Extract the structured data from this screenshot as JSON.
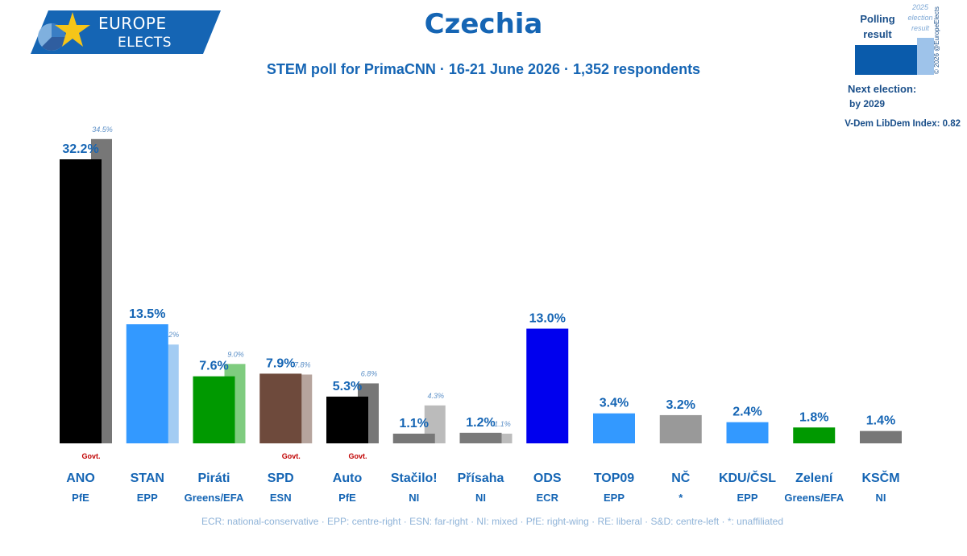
{
  "brand": {
    "line1": "EUROPE",
    "line2": "ELECTS",
    "colors": {
      "blue": "#1565b4",
      "star": "#f5c518"
    }
  },
  "title": "Czechia",
  "subtitle": "STEM poll for PrimaCNN · 16-21 June 2026 · 1,352 respondents",
  "legend": {
    "polling_line1": "Polling",
    "polling_line2": "result",
    "prev_line1": "2025",
    "prev_line2": "election",
    "prev_line3": "result",
    "copyright": "© 2026 @EuropeElects",
    "next_election_label": "Next election:",
    "next_election_value": "by 2029",
    "vdem": "V-Dem LibDem Index: 0.82"
  },
  "footnote": "ECR: national-conservative · EPP: centre-right · ESN: far-right · NI: mixed · PfE: right-wing · RE: liberal · S&D: centre-left · *: unaffiliated",
  "chart_data": {
    "type": "bar",
    "title": "Czechia",
    "subtitle": "STEM poll for PrimaCNN · 16-21 June 2026 · 1,352 respondents",
    "unit": "%",
    "ylim": [
      0,
      35
    ],
    "grid": false,
    "legend_position": "top-right",
    "categories": [
      "ANO",
      "STAN",
      "Piráti",
      "SPD",
      "Auto",
      "Stačilo!",
      "Přísaha",
      "ODS",
      "TOP09",
      "NČ",
      "KDU/ČSL",
      "Zelení",
      "KSČM"
    ],
    "groups": [
      "PfE",
      "EPP",
      "Greens/EFA",
      "ESN",
      "PfE",
      "NI",
      "NI",
      "ECR",
      "EPP",
      "*",
      "EPP",
      "Greens/EFA",
      "NI"
    ],
    "government": [
      true,
      false,
      false,
      true,
      true,
      false,
      false,
      false,
      false,
      false,
      false,
      false,
      false
    ],
    "government_label": "Govt.",
    "series": [
      {
        "name": "Polling result",
        "values": [
          32.2,
          13.5,
          7.6,
          7.9,
          5.3,
          1.1,
          1.2,
          13.0,
          3.4,
          3.2,
          2.4,
          1.8,
          1.4
        ],
        "labels": [
          "32.2%",
          "13.5%",
          "7.6%",
          "7.9%",
          "5.3%",
          "1.1%",
          "1.2%",
          "13.0%",
          "3.4%",
          "3.2%",
          "2.4%",
          "1.8%",
          "1.4%"
        ]
      },
      {
        "name": "2025 election result",
        "values": [
          34.5,
          11.2,
          9.0,
          7.8,
          6.8,
          4.3,
          1.1,
          null,
          null,
          null,
          null,
          null,
          null
        ],
        "labels": [
          "34.5%",
          "11.2%",
          "9.0%",
          "7.8%",
          "6.8%",
          "4.3%",
          "1.1%",
          "",
          "",
          "",
          "",
          "",
          ""
        ]
      }
    ],
    "colors": [
      "#000000",
      "#3399ff",
      "#009900",
      "#6e4a3c",
      "#000000",
      "#777777",
      "#7a7a7a",
      "#0000ee",
      "#3399ff",
      "#999999",
      "#3399ff",
      "#009900",
      "#777777"
    ],
    "prev_colors": [
      "#777777",
      "#a3ccf3",
      "#7fcc7f",
      "#b6a49d",
      "#777777",
      "#bbbbbb",
      "#bcbcbc",
      "",
      "",
      "",
      "",
      "",
      ""
    ]
  }
}
